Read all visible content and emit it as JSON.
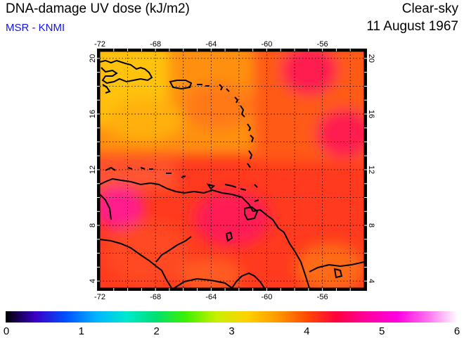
{
  "header": {
    "title": "DNA-damage UV dose (kJ/m2)",
    "subtitle": "MSR - KNMI",
    "condition": "Clear-sky",
    "date": "11 August 1967"
  },
  "map": {
    "lon_range": [
      -72,
      -53
    ],
    "lat_range": [
      3.5,
      20.5
    ],
    "lon_ticks": [
      "-72",
      "-68",
      "-64",
      "-60",
      "-56"
    ],
    "lat_ticks": [
      "4",
      "8",
      "12",
      "16",
      "20"
    ],
    "grid": true
  },
  "colorbar": {
    "labels": [
      "0",
      "1",
      "2",
      "3",
      "4",
      "5",
      "6"
    ],
    "min": 0,
    "max": 6,
    "stops": [
      "#000000",
      "#3a00c8",
      "#0050ff",
      "#00b4ff",
      "#00e8d0",
      "#00e070",
      "#40f000",
      "#c8f000",
      "#ffd200",
      "#ff9a00",
      "#ff4a00",
      "#ff0040",
      "#ff00a0",
      "#ff00e0",
      "#ff70f0",
      "#ffffff"
    ]
  }
}
